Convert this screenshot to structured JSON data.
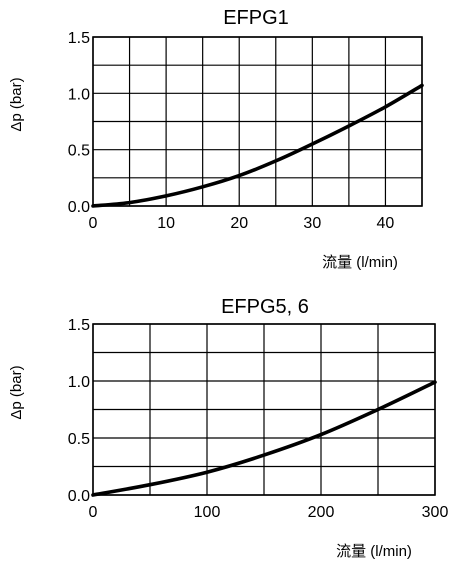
{
  "chart_data": [
    {
      "type": "line",
      "title": "EFPG1",
      "xlabel": "流量 (l/min)",
      "ylabel": "Δp (bar)",
      "xlim": [
        0,
        45
      ],
      "ylim": [
        0,
        1.5
      ],
      "x_ticks": [
        "0",
        "10",
        "20",
        "30",
        "40"
      ],
      "y_ticks": [
        "0.0",
        "0.5",
        "1.0",
        "1.5"
      ],
      "grid": true,
      "series": [
        {
          "x": [
            0,
            5,
            10,
            15,
            20,
            25,
            30,
            35,
            40,
            45
          ],
          "y": [
            0.0,
            0.03,
            0.09,
            0.17,
            0.27,
            0.4,
            0.55,
            0.71,
            0.88,
            1.07
          ]
        }
      ]
    },
    {
      "type": "line",
      "title": "EFPG5, 6",
      "xlabel": "流量 (l/min)",
      "ylabel": "Δp (bar)",
      "xlim": [
        0,
        300
      ],
      "ylim": [
        0,
        1.5
      ],
      "x_ticks": [
        "0",
        "100",
        "200",
        "300"
      ],
      "y_ticks": [
        "0.0",
        "0.5",
        "1.0",
        "1.5"
      ],
      "grid": true,
      "series": [
        {
          "x": [
            0,
            50,
            100,
            150,
            200,
            250,
            300
          ],
          "y": [
            0.0,
            0.09,
            0.2,
            0.35,
            0.53,
            0.75,
            0.99
          ]
        }
      ]
    }
  ]
}
